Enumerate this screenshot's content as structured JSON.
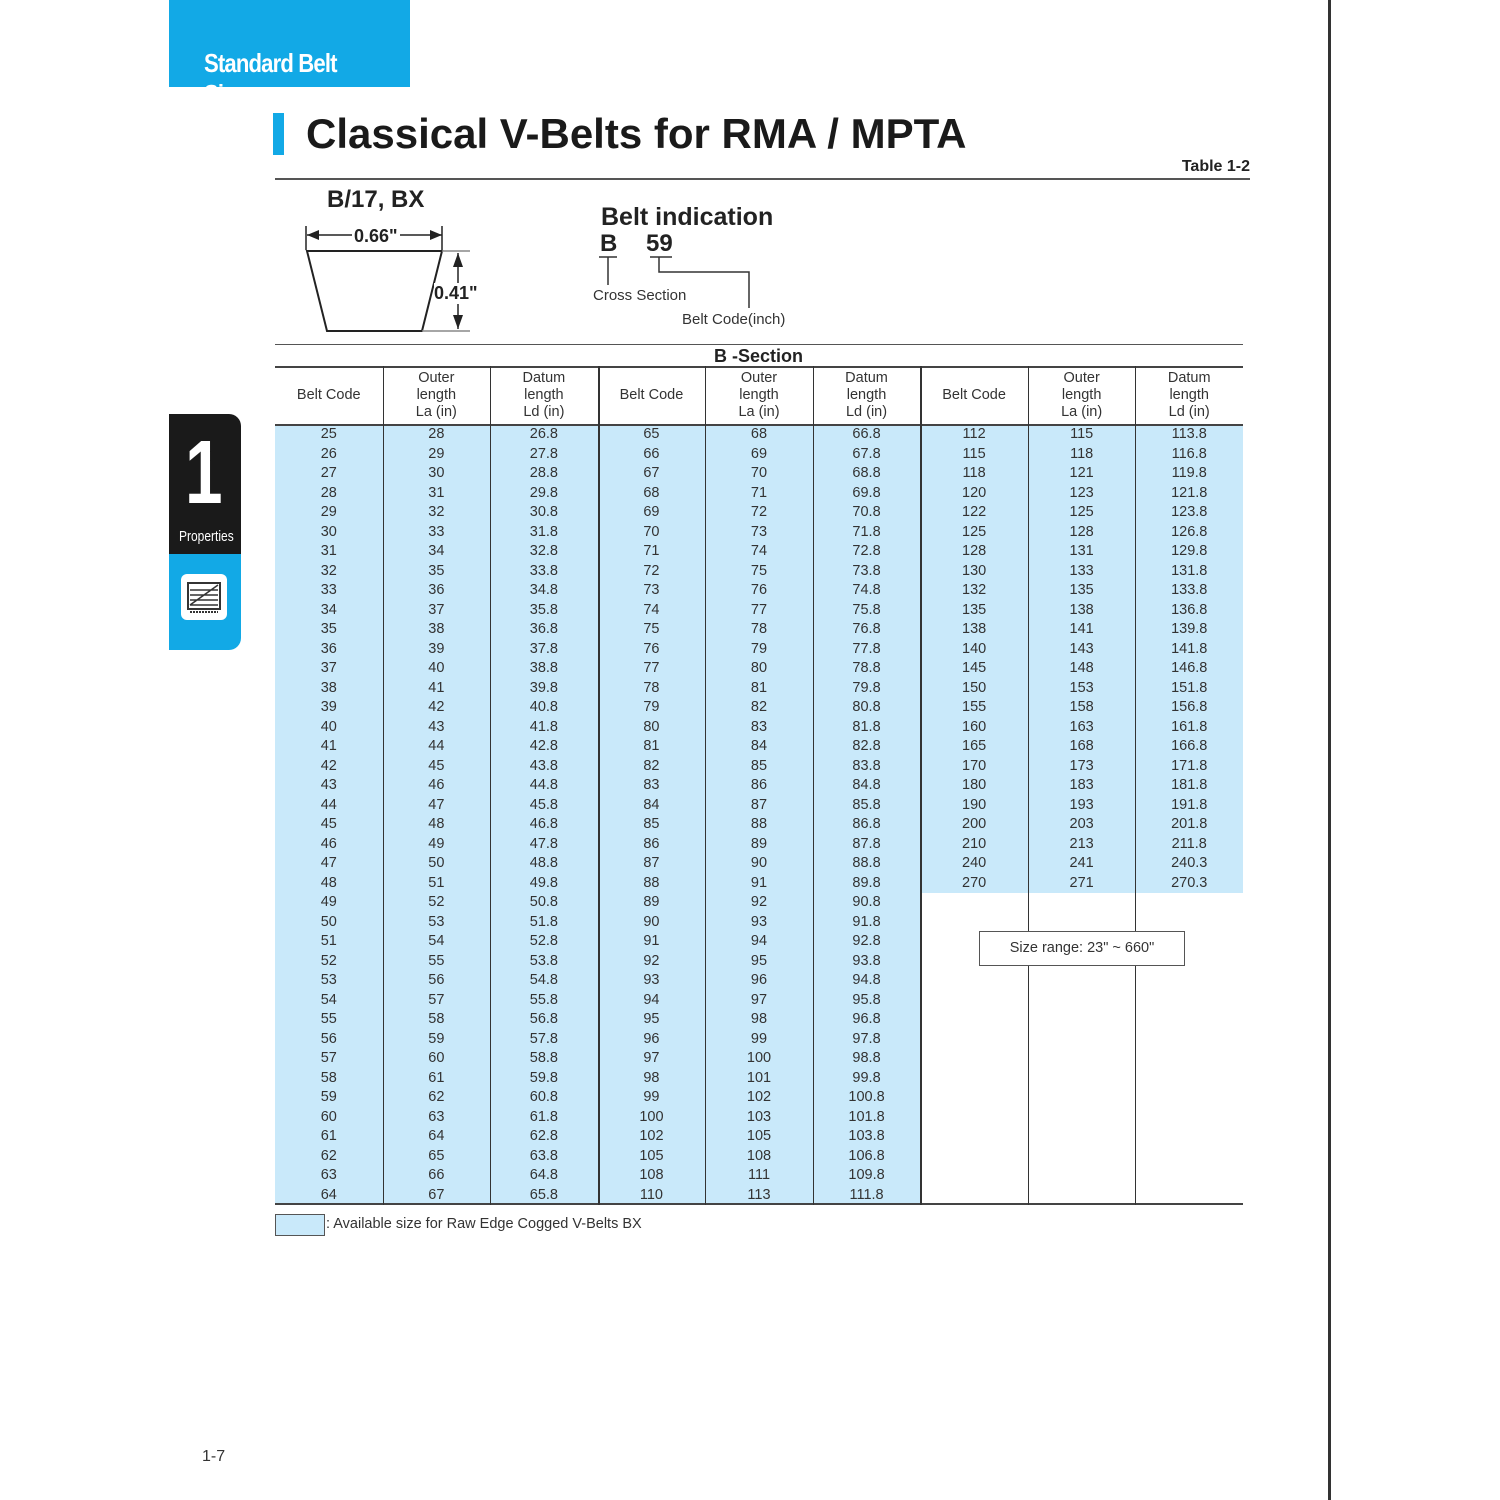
{
  "header_tab": "Standard Belt Sizes",
  "title": "Classical V-Belts for RMA / MPTA",
  "table_number": "Table 1-2",
  "side_tab": {
    "number": "1",
    "label": "Properties",
    "icon": "document-lines-icon"
  },
  "cross_section": {
    "title": "B/17, BX",
    "width": "0.66\"",
    "height": "0.41\""
  },
  "belt_indication": {
    "title": "Belt indication",
    "section_letter": "B",
    "code": "59",
    "cross_section_label": "Cross Section",
    "belt_code_label": "Belt Code(inch)"
  },
  "section_title": "B -Section",
  "columns": [
    "Belt Code",
    "Outer\nlength\nLa (in)",
    "Datum\nlength\nLd (in)"
  ],
  "groups": [
    [
      [
        "25",
        "28",
        "26.8"
      ],
      [
        "26",
        "29",
        "27.8"
      ],
      [
        "27",
        "30",
        "28.8"
      ],
      [
        "28",
        "31",
        "29.8"
      ],
      [
        "29",
        "32",
        "30.8"
      ],
      [
        "30",
        "33",
        "31.8"
      ],
      [
        "31",
        "34",
        "32.8"
      ],
      [
        "32",
        "35",
        "33.8"
      ],
      [
        "33",
        "36",
        "34.8"
      ],
      [
        "34",
        "37",
        "35.8"
      ],
      [
        "35",
        "38",
        "36.8"
      ],
      [
        "36",
        "39",
        "37.8"
      ],
      [
        "37",
        "40",
        "38.8"
      ],
      [
        "38",
        "41",
        "39.8"
      ],
      [
        "39",
        "42",
        "40.8"
      ],
      [
        "40",
        "43",
        "41.8"
      ],
      [
        "41",
        "44",
        "42.8"
      ],
      [
        "42",
        "45",
        "43.8"
      ],
      [
        "43",
        "46",
        "44.8"
      ],
      [
        "44",
        "47",
        "45.8"
      ],
      [
        "45",
        "48",
        "46.8"
      ],
      [
        "46",
        "49",
        "47.8"
      ],
      [
        "47",
        "50",
        "48.8"
      ],
      [
        "48",
        "51",
        "49.8"
      ],
      [
        "49",
        "52",
        "50.8"
      ],
      [
        "50",
        "53",
        "51.8"
      ],
      [
        "51",
        "54",
        "52.8"
      ],
      [
        "52",
        "55",
        "53.8"
      ],
      [
        "53",
        "56",
        "54.8"
      ],
      [
        "54",
        "57",
        "55.8"
      ],
      [
        "55",
        "58",
        "56.8"
      ],
      [
        "56",
        "59",
        "57.8"
      ],
      [
        "57",
        "60",
        "58.8"
      ],
      [
        "58",
        "61",
        "59.8"
      ],
      [
        "59",
        "62",
        "60.8"
      ],
      [
        "60",
        "63",
        "61.8"
      ],
      [
        "61",
        "64",
        "62.8"
      ],
      [
        "62",
        "65",
        "63.8"
      ],
      [
        "63",
        "66",
        "64.8"
      ],
      [
        "64",
        "67",
        "65.8"
      ]
    ],
    [
      [
        "65",
        "68",
        "66.8"
      ],
      [
        "66",
        "69",
        "67.8"
      ],
      [
        "67",
        "70",
        "68.8"
      ],
      [
        "68",
        "71",
        "69.8"
      ],
      [
        "69",
        "72",
        "70.8"
      ],
      [
        "70",
        "73",
        "71.8"
      ],
      [
        "71",
        "74",
        "72.8"
      ],
      [
        "72",
        "75",
        "73.8"
      ],
      [
        "73",
        "76",
        "74.8"
      ],
      [
        "74",
        "77",
        "75.8"
      ],
      [
        "75",
        "78",
        "76.8"
      ],
      [
        "76",
        "79",
        "77.8"
      ],
      [
        "77",
        "80",
        "78.8"
      ],
      [
        "78",
        "81",
        "79.8"
      ],
      [
        "79",
        "82",
        "80.8"
      ],
      [
        "80",
        "83",
        "81.8"
      ],
      [
        "81",
        "84",
        "82.8"
      ],
      [
        "82",
        "85",
        "83.8"
      ],
      [
        "83",
        "86",
        "84.8"
      ],
      [
        "84",
        "87",
        "85.8"
      ],
      [
        "85",
        "88",
        "86.8"
      ],
      [
        "86",
        "89",
        "87.8"
      ],
      [
        "87",
        "90",
        "88.8"
      ],
      [
        "88",
        "91",
        "89.8"
      ],
      [
        "89",
        "92",
        "90.8"
      ],
      [
        "90",
        "93",
        "91.8"
      ],
      [
        "91",
        "94",
        "92.8"
      ],
      [
        "92",
        "95",
        "93.8"
      ],
      [
        "93",
        "96",
        "94.8"
      ],
      [
        "94",
        "97",
        "95.8"
      ],
      [
        "95",
        "98",
        "96.8"
      ],
      [
        "96",
        "99",
        "97.8"
      ],
      [
        "97",
        "100",
        "98.8"
      ],
      [
        "98",
        "101",
        "99.8"
      ],
      [
        "99",
        "102",
        "100.8"
      ],
      [
        "100",
        "103",
        "101.8"
      ],
      [
        "102",
        "105",
        "103.8"
      ],
      [
        "105",
        "108",
        "106.8"
      ],
      [
        "108",
        "111",
        "109.8"
      ],
      [
        "110",
        "113",
        "111.8"
      ]
    ],
    [
      [
        "112",
        "115",
        "113.8"
      ],
      [
        "115",
        "118",
        "116.8"
      ],
      [
        "118",
        "121",
        "119.8"
      ],
      [
        "120",
        "123",
        "121.8"
      ],
      [
        "122",
        "125",
        "123.8"
      ],
      [
        "125",
        "128",
        "126.8"
      ],
      [
        "128",
        "131",
        "129.8"
      ],
      [
        "130",
        "133",
        "131.8"
      ],
      [
        "132",
        "135",
        "133.8"
      ],
      [
        "135",
        "138",
        "136.8"
      ],
      [
        "138",
        "141",
        "139.8"
      ],
      [
        "140",
        "143",
        "141.8"
      ],
      [
        "145",
        "148",
        "146.8"
      ],
      [
        "150",
        "153",
        "151.8"
      ],
      [
        "155",
        "158",
        "156.8"
      ],
      [
        "160",
        "163",
        "161.8"
      ],
      [
        "165",
        "168",
        "166.8"
      ],
      [
        "170",
        "173",
        "171.8"
      ],
      [
        "180",
        "183",
        "181.8"
      ],
      [
        "190",
        "193",
        "191.8"
      ],
      [
        "200",
        "203",
        "201.8"
      ],
      [
        "210",
        "213",
        "211.8"
      ],
      [
        "240",
        "241",
        "240.3"
      ],
      [
        "270",
        "271",
        "270.3"
      ]
    ]
  ],
  "size_range": "Size range: 23\" ~ 660\"",
  "legend": ": Available size for Raw Edge Cogged V-Belts BX",
  "highlight_color": "#c9e9fa",
  "accent_color": "#12a9e6",
  "page_number": "1-7"
}
